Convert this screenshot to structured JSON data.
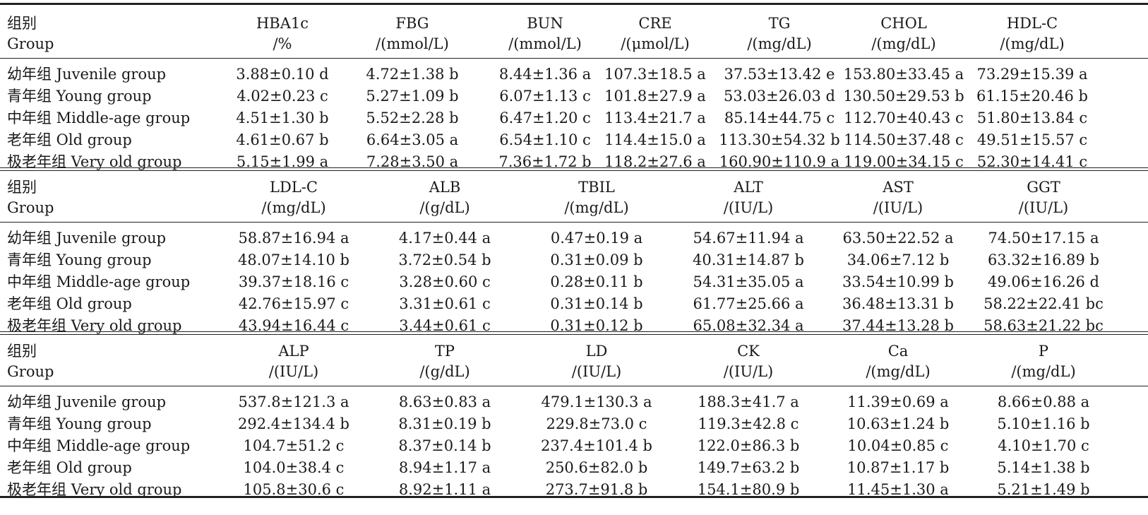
{
  "group_header": {
    "cn": "组别",
    "en": "Group"
  },
  "blocks": [
    {
      "columns": [
        {
          "name": "HBA1c",
          "unit": "/%"
        },
        {
          "name": "FBG",
          "unit": "/(mmol/L)"
        },
        {
          "name": "BUN",
          "unit": "/(mmol/L)"
        },
        {
          "name": "CRE",
          "unit": "/(μmol/L)"
        },
        {
          "name": "TG",
          "unit": "/(mg/dL)"
        },
        {
          "name": "CHOL",
          "unit": "/(mg/dL)"
        },
        {
          "name": "HDL-C",
          "unit": "/(mg/dL)"
        }
      ],
      "rows": [
        {
          "group": "幼年组 Juvenile group",
          "values": [
            "3.88±0.10 d",
            "4.72±1.38 b",
            "8.44±1.36 a",
            "107.3±18.5 a",
            "37.53±13.42 e",
            "153.80±33.45 a",
            "73.29±15.39 a"
          ]
        },
        {
          "group": "青年组 Young group",
          "values": [
            "4.02±0.23 c",
            "5.27±1.09 b",
            "6.07±1.13 c",
            "101.8±27.9 a",
            "53.03±26.03 d",
            "130.50±29.53 b",
            "61.15±20.46 b"
          ]
        },
        {
          "group": "中年组 Middle-age group",
          "values": [
            "4.51±1.30 b",
            "5.52±2.28 b",
            "6.47±1.20 c",
            "113.4±21.7 a",
            "85.14±44.75 c",
            "112.70±40.43 c",
            "51.80±13.84 c"
          ]
        },
        {
          "group": "老年组 Old group",
          "values": [
            "4.61±0.67 b",
            "6.64±3.05 a",
            "6.54±1.10 c",
            "114.4±15.0 a",
            "113.30±54.32 b",
            "114.50±37.48 c",
            "49.51±15.57 c"
          ]
        },
        {
          "group": "极老年组 Very old group",
          "values": [
            "5.15±1.99 a",
            "7.28±3.50 a",
            "7.36±1.72 b",
            "118.2±27.6 a",
            "160.90±110.9 a",
            "119.00±34.15 c",
            "52.30±14.41 c"
          ]
        }
      ]
    },
    {
      "columns": [
        {
          "name": "LDL-C",
          "unit": "/(mg/dL)"
        },
        {
          "name": "ALB",
          "unit": "/(g/dL)"
        },
        {
          "name": "TBIL",
          "unit": "/(mg/dL)"
        },
        {
          "name": "ALT",
          "unit": "/(IU/L)"
        },
        {
          "name": "AST",
          "unit": "/(IU/L)"
        },
        {
          "name": "GGT",
          "unit": "/(IU/L)"
        }
      ],
      "rows": [
        {
          "group": "幼年组 Juvenile group",
          "values": [
            "58.87±16.94 a",
            "4.17±0.44 a",
            "0.47±0.19 a",
            "54.67±11.94 a",
            "63.50±22.52 a",
            "74.50±17.15 a"
          ]
        },
        {
          "group": "青年组 Young group",
          "values": [
            "48.07±14.10 b",
            "3.72±0.54 b",
            "0.31±0.09 b",
            "40.31±14.87 b",
            "34.06±7.12 b",
            "63.32±16.89 b"
          ]
        },
        {
          "group": "中年组 Middle-age group",
          "values": [
            "39.37±18.16 c",
            "3.28±0.60 c",
            "0.28±0.11 b",
            "54.31±35.05 a",
            "33.54±10.99 b",
            "49.06±16.26 d"
          ]
        },
        {
          "group": "老年组 Old group",
          "values": [
            "42.76±15.97 c",
            "3.31±0.61 c",
            "0.31±0.14 b",
            "61.77±25.66 a",
            "36.48±13.31 b",
            "58.22±22.41 bc"
          ]
        },
        {
          "group": "极老年组 Very old group",
          "values": [
            "43.94±16.44 c",
            "3.44±0.61 c",
            "0.31±0.12 b",
            "65.08±32.34 a",
            "37.44±13.28 b",
            "58.63±21.22 bc"
          ]
        }
      ]
    },
    {
      "columns": [
        {
          "name": "ALP",
          "unit": "/(IU/L)"
        },
        {
          "name": "TP",
          "unit": "/(g/dL)"
        },
        {
          "name": "LD",
          "unit": "/(IU/L)"
        },
        {
          "name": "CK",
          "unit": "/(IU/L)"
        },
        {
          "name": "Ca",
          "unit": "/(mg/dL)"
        },
        {
          "name": "P",
          "unit": "/(mg/dL)"
        }
      ],
      "rows": [
        {
          "group": "幼年组 Juvenile group",
          "values": [
            "537.8±121.3 a",
            "8.63±0.83 a",
            "479.1±130.3 a",
            "188.3±41.7 a",
            "11.39±0.69 a",
            "8.66±0.88 a"
          ]
        },
        {
          "group": "青年组 Young group",
          "values": [
            "292.4±134.4 b",
            "8.31±0.19 b",
            "229.8±73.0 c",
            "119.3±42.8 c",
            "10.63±1.24 b",
            "5.10±1.16 b"
          ]
        },
        {
          "group": "中年组 Middle-age group",
          "values": [
            "104.7±51.2 c",
            "8.37±0.14 b",
            "237.4±101.4 b",
            "122.0±86.3 b",
            "10.04±0.85 c",
            "4.10±1.70 c"
          ]
        },
        {
          "group": "老年组 Old group",
          "values": [
            "104.0±38.4 c",
            "8.94±1.17 a",
            "250.6±82.0 b",
            "149.7±63.2 b",
            "10.87±1.17 b",
            "5.14±1.38 b"
          ]
        },
        {
          "group": "极老年组 Very old group",
          "values": [
            "105.8±30.6 c",
            "8.92±1.11 a",
            "273.7±91.8 b",
            "154.1±80.9 b",
            "11.45±1.30 a",
            "5.21±1.49 b"
          ]
        }
      ]
    }
  ]
}
